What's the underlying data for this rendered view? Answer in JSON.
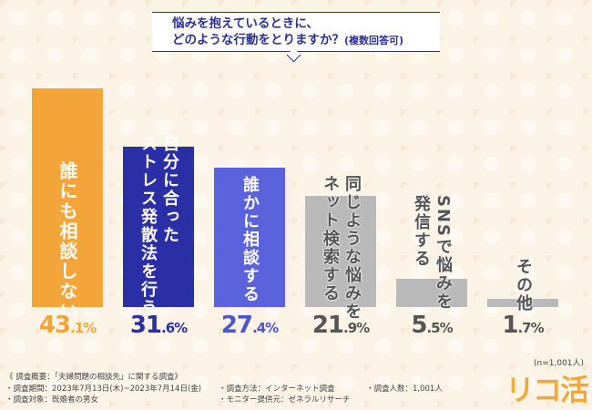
{
  "title": {
    "line1": "悩みを抱えているときに、",
    "line2": "どのような行動をとりますか？",
    "note": "(複数回答可)"
  },
  "chart_data": {
    "type": "bar",
    "title": "悩みを抱えているときに、どのような行動をとりますか？(複数回答可)",
    "categories": [
      "誰にも相談しない",
      "自分に合ったストレス発散法を行う",
      "誰かに相談する",
      "同じような悩みをネット検索する",
      "SNSで悩みを発信する",
      "その他"
    ],
    "label_lines": [
      [
        "誰にも相談しない"
      ],
      [
        "ストレス発散法を行う",
        "自分に合った"
      ],
      [
        "誰かに相談する"
      ],
      [
        "ネット検索する",
        "同じような悩みを"
      ],
      [
        "発信する",
        "SNSで悩みを"
      ],
      [
        "その他"
      ]
    ],
    "values": [
      43.1,
      31.6,
      27.4,
      21.9,
      5.5,
      1.7
    ],
    "value_labels": [
      [
        "43",
        ".1%"
      ],
      [
        "31",
        ".6%"
      ],
      [
        "27",
        ".4%"
      ],
      [
        "21",
        ".9%"
      ],
      [
        "5",
        ".5%"
      ],
      [
        "1",
        ".7%"
      ]
    ],
    "unit": "%",
    "colors": [
      "#f4a53a",
      "#2b2fa6",
      "#5a63dc",
      "#b9b9b9",
      "#b9b9b9",
      "#b9b9b9"
    ],
    "value_colors": [
      "#f4a53a",
      "#2b2fa6",
      "#4b55d0",
      "#555555",
      "#555555",
      "#555555"
    ],
    "grid": false,
    "ylim": [
      0,
      43.1
    ]
  },
  "sample": "(n=1,001人)",
  "footer": {
    "heading": "《 調査概要：「夫婦問題の相談先」に関する調査》",
    "period": "・調査期間：2023年7月13日(木)~2023年7月14日(金)",
    "target": "・調査対象：既婚者の男女",
    "method": "・調査方法：インターネット調査",
    "provider": "・モニター提供元：ゼネラルリサーチ",
    "count": "・調査人数：1,001人"
  },
  "logo": "リコ活"
}
